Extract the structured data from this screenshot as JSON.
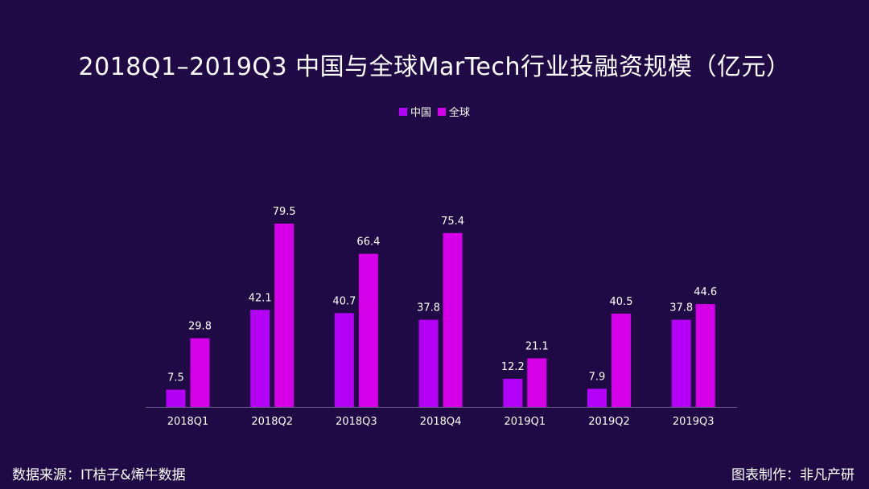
{
  "chart_data": {
    "type": "bar",
    "title": "2018Q1–2019Q3 中国与全球MarTech行业投融资规模（亿元）",
    "categories": [
      "2018Q1",
      "2018Q2",
      "2018Q3",
      "2018Q4",
      "2019Q1",
      "2019Q2",
      "2019Q3"
    ],
    "series": [
      {
        "name": "中国",
        "values": [
          7.5,
          42.1,
          40.7,
          37.8,
          12.2,
          7.9,
          37.8
        ]
      },
      {
        "name": "全球",
        "values": [
          29.8,
          79.5,
          66.4,
          75.4,
          21.1,
          40.5,
          44.6
        ]
      }
    ],
    "value_labels": [
      [
        "7.5",
        "42.1",
        "40.7",
        "37.8",
        "12.2",
        "7.9",
        "37.8"
      ],
      [
        "29.8",
        "79.5",
        "66.4",
        "75.4",
        "21.1",
        "40.5",
        "44.6"
      ]
    ],
    "ylim": [
      0,
      80
    ],
    "xlabel": "",
    "ylabel": "",
    "grid": false,
    "legend": "top-center"
  },
  "colors": {
    "background": "#1f0a45",
    "china": "#b400f6",
    "global": "#d500e8",
    "axis": "#6a5a8a"
  },
  "footer": {
    "source": "数据来源：IT桔子&烯牛数据",
    "credit": "图表制作：非凡产研"
  }
}
